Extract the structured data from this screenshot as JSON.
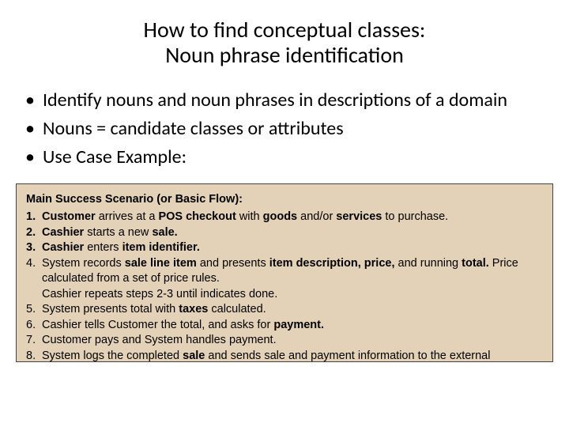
{
  "title": {
    "line1": "How to find conceptual classes:",
    "line2": "Noun phrase identification",
    "fontsize": 28,
    "color": "#000000",
    "align": "center"
  },
  "bullets": {
    "items": [
      "Identify nouns and noun phrases in descriptions of a domain",
      "Nouns = candidate classes or attributes",
      "Use Case Example:"
    ],
    "fontsize": 24,
    "color": "#000000",
    "bullet_char": "•"
  },
  "scenario": {
    "box": {
      "background_color": "#e4d2b8",
      "border_color": "#444444",
      "border_width": 1
    },
    "heading": "Main Success Scenario (or Basic Flow):",
    "font_family": "Arial",
    "fontsize": 14.5,
    "text_color": "#000000",
    "steps": [
      {
        "n": "1.",
        "bold_num": true,
        "html": "<b>Customer</b> arrives at a <b>POS checkout</b> with <b>goods</b> and/or <b>services</b> to purchase."
      },
      {
        "n": "2.",
        "bold_num": true,
        "html": "<b>Cashier</b> starts a new <b>sale.</b>"
      },
      {
        "n": "3.",
        "bold_num": true,
        "html": "<b>Cashier</b> enters <b>item identifier.</b>"
      },
      {
        "n": "4.",
        "bold_num": false,
        "html": "System records <b>sale line item</b> and presents <b>item description, price,</b> and running <b>total.</b> Price calculated from a set of price rules."
      }
    ],
    "interstitial": "Cashier repeats steps 2-3 until indicates done.",
    "steps2": [
      {
        "n": "5.",
        "bold_num": false,
        "html": "System presents total with <b>taxes</b> calculated."
      },
      {
        "n": "6.",
        "bold_num": false,
        "html": "Cashier tells Customer the total, and asks for <b>payment.</b>"
      },
      {
        "n": "7.",
        "bold_num": false,
        "html": "Customer pays and System handles payment."
      },
      {
        "n": "8.",
        "bold_num": false,
        "html": "System logs the completed <b>sale</b> and sends sale and payment information to the external <b>Accounting</b> (for accounting and <b>commissions</b>) and <b>Inventory</b> systems (to"
      }
    ]
  }
}
